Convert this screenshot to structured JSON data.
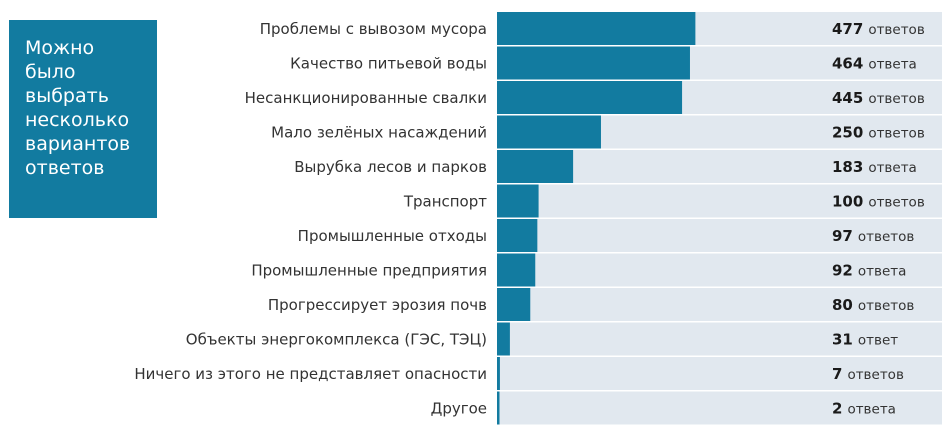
{
  "note": "Можно\nбыло\nвыбрать\nнесколько\nвариантов\nответов",
  "colors": {
    "bar": "#127ba0",
    "track": "#e1e8ef",
    "note_bg": "#127ba0"
  },
  "chart_data": {
    "type": "bar",
    "orientation": "horizontal",
    "title": "",
    "xlim": [
      0,
      1070
    ],
    "categories": [
      "Проблемы  с вывозом мусора",
      "Качество питьевой воды",
      "Несанкционированные свалки",
      "Мало зелёных насаждений",
      "Вырубка лесов и парков",
      "Транспорт",
      "Промышленные отходы",
      "Промышленные предприятия",
      "Прогрессирует эрозия почв",
      "Объекты энергокомплекса (ГЭС, ТЭЦ)",
      "Ничего из этого не представляет опасности",
      "Другое"
    ],
    "values": [
      477,
      464,
      445,
      250,
      183,
      100,
      97,
      92,
      80,
      31,
      7,
      2
    ],
    "value_labels": [
      {
        "num": "477",
        "word": "ответов"
      },
      {
        "num": "464",
        "word": "ответа"
      },
      {
        "num": "445",
        "word": "ответов"
      },
      {
        "num": "250",
        "word": "ответов"
      },
      {
        "num": "183",
        "word": "ответа"
      },
      {
        "num": "100",
        "word": "ответов"
      },
      {
        "num": "97",
        "word": "ответов"
      },
      {
        "num": "92",
        "word": "ответа"
      },
      {
        "num": "80",
        "word": "ответов"
      },
      {
        "num": "31",
        "word": "ответ"
      },
      {
        "num": "7",
        "word": "ответов"
      },
      {
        "num": "2",
        "word": "ответа"
      }
    ]
  }
}
